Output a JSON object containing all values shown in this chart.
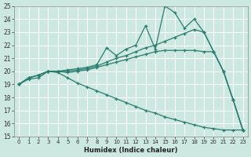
{
  "xlabel": "Humidex (Indice chaleur)",
  "xlim": [
    -0.5,
    23.5
  ],
  "ylim": [
    15,
    25
  ],
  "xticks": [
    0,
    1,
    2,
    3,
    4,
    5,
    6,
    7,
    8,
    9,
    10,
    11,
    12,
    13,
    14,
    15,
    16,
    17,
    18,
    19,
    20,
    21,
    22,
    23
  ],
  "yticks": [
    15,
    16,
    17,
    18,
    19,
    20,
    21,
    22,
    23,
    24,
    25
  ],
  "color": "#2a7d6e",
  "bg_color": "#cce8e0",
  "lines": [
    {
      "x": [
        0,
        1,
        2,
        3,
        4,
        5,
        6,
        7,
        8,
        9,
        10,
        11,
        12,
        13,
        14,
        15,
        16,
        17,
        18,
        19,
        20,
        21,
        22,
        23
      ],
      "y": [
        19,
        19.5,
        19.7,
        20.0,
        20.0,
        20.1,
        20.2,
        20.3,
        20.5,
        21.8,
        21.2,
        21.7,
        22.0,
        23.5,
        21.7,
        25.0,
        24.5,
        23.3,
        24.0,
        23.0,
        21.5,
        20.0,
        17.8,
        15.5
      ]
    },
    {
      "x": [
        0,
        1,
        2,
        3,
        4,
        5,
        6,
        7,
        8,
        9,
        10,
        11,
        12,
        13,
        14,
        15,
        16,
        17,
        18,
        19,
        20,
        21,
        22,
        23
      ],
      "y": [
        19,
        19.5,
        19.7,
        20.0,
        20.0,
        20.0,
        20.1,
        20.2,
        20.4,
        20.7,
        21.0,
        21.2,
        21.5,
        21.8,
        22.0,
        22.3,
        22.6,
        22.9,
        23.2,
        23.0,
        21.5,
        20.0,
        17.8,
        15.5
      ]
    },
    {
      "x": [
        0,
        1,
        2,
        3,
        4,
        5,
        6,
        7,
        8,
        9,
        10,
        11,
        12,
        13,
        14,
        15,
        16,
        17,
        18,
        19,
        20,
        21,
        22,
        23
      ],
      "y": [
        19,
        19.5,
        19.7,
        20.0,
        20.0,
        19.9,
        20.0,
        20.1,
        20.3,
        20.5,
        20.7,
        20.9,
        21.1,
        21.3,
        21.5,
        21.6,
        21.6,
        21.6,
        21.6,
        21.5,
        21.5,
        20.0,
        17.8,
        15.5
      ]
    },
    {
      "x": [
        0,
        1,
        2,
        3,
        4,
        5,
        6,
        7,
        8,
        9,
        10,
        11,
        12,
        13,
        14,
        15,
        16,
        17,
        18,
        19,
        20,
        21,
        22,
        23
      ],
      "y": [
        19,
        19.4,
        19.5,
        20.0,
        19.9,
        19.5,
        19.1,
        18.8,
        18.5,
        18.2,
        17.9,
        17.6,
        17.3,
        17.0,
        16.8,
        16.5,
        16.3,
        16.1,
        15.9,
        15.7,
        15.6,
        15.5,
        15.5,
        15.5
      ]
    }
  ]
}
